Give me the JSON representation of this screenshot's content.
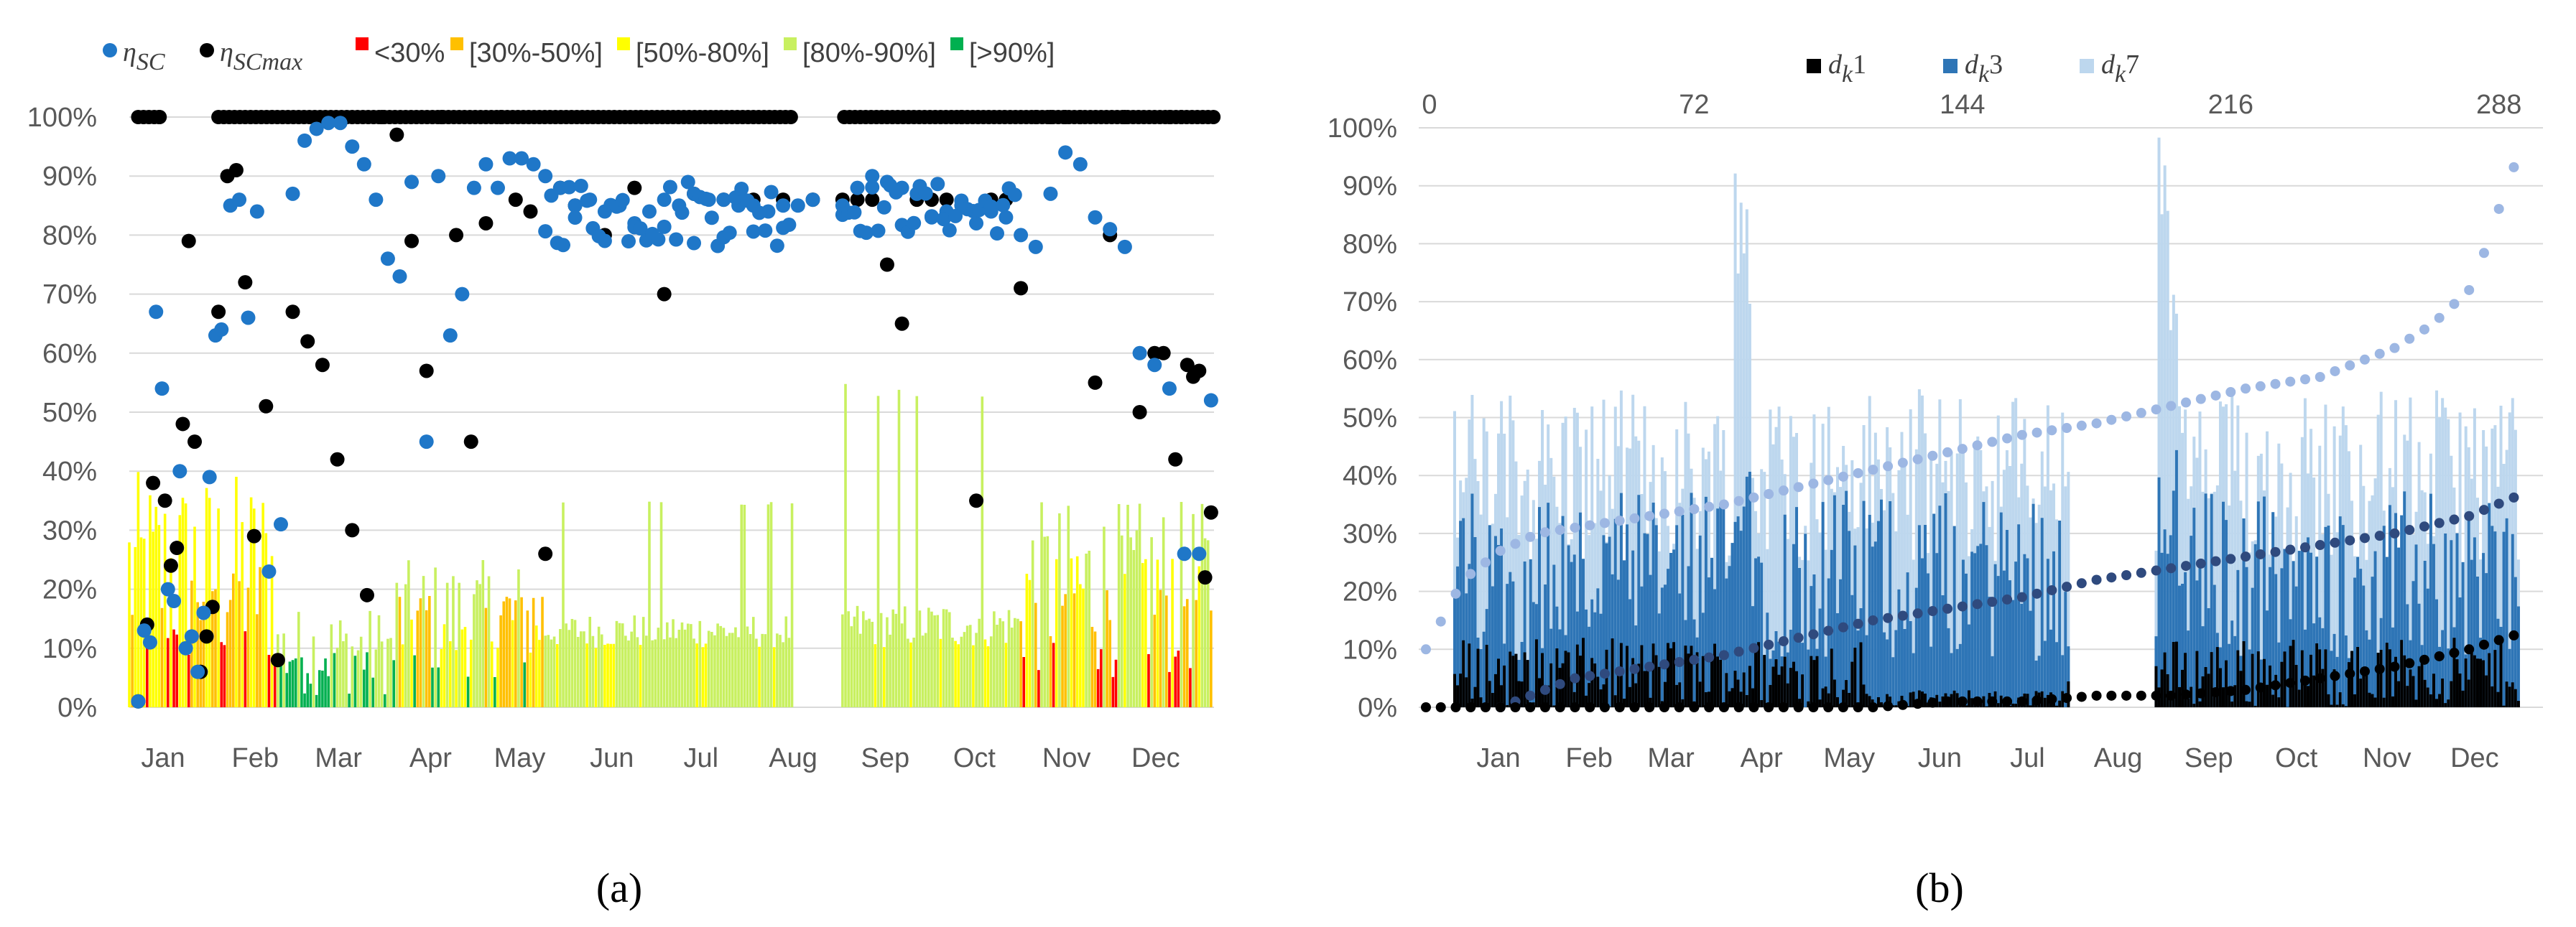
{
  "panel_a_label": "(a)",
  "panel_b_label": "(b)",
  "colors": {
    "eta_sc": "#1f77c8",
    "eta_scmax": "#000000",
    "lt30": "#ff0000",
    "b30_50": "#ffc000",
    "b50_80": "#ffff00",
    "b80_90": "#c8f060",
    "gt90": "#00b050",
    "dk1": "#000000",
    "dk3": "#2e75b6",
    "dk7": "#bdd7ee",
    "gridline": "#d9d9d9",
    "axis_text": "#595959"
  },
  "chart_data": [
    {
      "type": "scatter",
      "panel": "a",
      "ylim": [
        0,
        100
      ],
      "yticks": [
        "0%",
        "10%",
        "20%",
        "30%",
        "40%",
        "50%",
        "60%",
        "70%",
        "80%",
        "90%",
        "100%"
      ],
      "xticks": [
        "Jan",
        "Feb",
        "Mar",
        "Apr",
        "May",
        "Jun",
        "Jul",
        "Aug",
        "Sep",
        "Oct",
        "Nov",
        "Dec"
      ],
      "legend": [
        {
          "symbol": "dot",
          "main": "η",
          "sub": "SC",
          "color": "#1f77c8"
        },
        {
          "symbol": "dot",
          "main": "η",
          "sub": "SCmax",
          "color": "#000000"
        },
        {
          "symbol": "square",
          "text": "<30%",
          "color": "#ff0000"
        },
        {
          "symbol": "square",
          "text": "[30%-50%]",
          "color": "#ffc000"
        },
        {
          "symbol": "square",
          "text": "[50%-80%]",
          "color": "#ffff00"
        },
        {
          "symbol": "square",
          "text": "[80%-90%]",
          "color": "#c8f060"
        },
        {
          "symbol": "square",
          "text": "[>90%]",
          "color": "#00b050"
        }
      ],
      "legend_position": "top",
      "grid": true,
      "series": [
        {
          "key": "eta_sc_max",
          "x_day": [
            3,
            6,
            8,
            10,
            12,
            14,
            16,
            18,
            20,
            22,
            24,
            26,
            28,
            30,
            33,
            36,
            39,
            42,
            46,
            50,
            55,
            60,
            65,
            70,
            75,
            80,
            85,
            90,
            95,
            100,
            105,
            110,
            115,
            120,
            125,
            130,
            135,
            140,
            145,
            150,
            160,
            170,
            180,
            190,
            200,
            210,
            220,
            230,
            240,
            245,
            250,
            255,
            260,
            265,
            270,
            275,
            280,
            285,
            290,
            295,
            300,
            305,
            310,
            315,
            320,
            325,
            330,
            335,
            340,
            345,
            348,
            350,
            352,
            354,
            356,
            358,
            360,
            362,
            364
          ],
          "y": [
            1,
            14,
            38,
            100,
            35,
            24,
            27,
            48,
            79,
            45,
            6,
            12,
            17,
            67,
            90,
            91,
            72,
            29,
            51,
            8,
            67,
            62,
            58,
            42,
            30,
            19,
            100,
            97,
            79,
            57,
            100,
            80,
            45,
            82,
            100,
            86,
            84,
            26,
            88,
            85,
            80,
            88,
            70,
            87,
            86,
            86,
            86,
            86,
            86,
            86,
            86,
            75,
            65,
            86,
            86,
            86,
            100,
            35,
            86,
            86,
            71,
            100,
            100,
            100,
            100,
            55,
            80,
            100,
            50,
            60,
            60,
            100,
            42,
            100,
            58,
            56,
            57,
            22,
            33
          ]
        },
        {
          "key": "eta_sc",
          "x_day": [
            3,
            5,
            7,
            9,
            11,
            13,
            15,
            17,
            19,
            21,
            23,
            25,
            27,
            29,
            31,
            34,
            37,
            40,
            43,
            47,
            51,
            55,
            59,
            63,
            67,
            71,
            75,
            79,
            83,
            87,
            91,
            95,
            100,
            104,
            108,
            112,
            116,
            120,
            124,
            128,
            132,
            136,
            140,
            145,
            150,
            155,
            160,
            165,
            170,
            175,
            180,
            185,
            190,
            195,
            200,
            205,
            210,
            215,
            220,
            225,
            230,
            240,
            245,
            250,
            255,
            260,
            265,
            270,
            275,
            280,
            285,
            290,
            295,
            300,
            305,
            310,
            315,
            320,
            325,
            330,
            335,
            340,
            345,
            350,
            355,
            360,
            364
          ],
          "y": [
            1,
            13,
            11,
            67,
            54,
            20,
            18,
            40,
            10,
            12,
            6,
            16,
            39,
            63,
            64,
            85,
            86,
            66,
            84,
            23,
            31,
            87,
            96,
            98,
            99,
            99,
            95,
            92,
            86,
            76,
            73,
            89,
            45,
            90,
            63,
            70,
            88,
            92,
            88,
            93,
            93,
            92,
            90,
            88,
            85,
            86,
            84,
            85,
            82,
            84,
            86,
            85,
            87,
            86,
            86,
            85,
            85,
            84,
            85,
            85,
            86,
            85,
            88,
            90,
            89,
            88,
            87,
            83,
            84,
            85,
            82,
            84,
            83,
            80,
            78,
            87,
            94,
            92,
            83,
            81,
            78,
            60,
            58,
            54,
            26,
            26,
            52
          ]
        }
      ],
      "bars_note": "daily coloured bars by band"
    },
    {
      "type": "bar",
      "panel": "b",
      "ylim": [
        0,
        100
      ],
      "yticks": [
        "0%",
        "10%",
        "20%",
        "30%",
        "40%",
        "50%",
        "60%",
        "70%",
        "80%",
        "90%",
        "100%"
      ],
      "xticks_bottom": [
        "Jan",
        "Feb",
        "Mar",
        "Apr",
        "May",
        "Jun",
        "Jul",
        "Aug",
        "Sep",
        "Oct",
        "Nov",
        "Dec"
      ],
      "xticks_top": [
        "0",
        "72",
        "144",
        "216",
        "288"
      ],
      "legend": [
        {
          "main": "d",
          "sub": "k",
          "num": "1",
          "color": "#000000"
        },
        {
          "main": "d",
          "sub": "k",
          "num": "3",
          "color": "#2e75b6"
        },
        {
          "main": "d",
          "sub": "k",
          "num": "7",
          "color": "#bdd7ee"
        }
      ],
      "legend_position": "top",
      "grid": true,
      "sorted_curves": [
        {
          "key": "dk7",
          "x_rank": [
            0,
            10,
            20,
            30,
            40,
            60,
            80,
            100,
            120,
            140,
            160,
            180,
            200,
            220,
            240,
            260,
            270,
            280,
            285,
            290,
            295
          ],
          "y": [
            10,
            22,
            27,
            30,
            31,
            33,
            35,
            38,
            41,
            44,
            47,
            49,
            52,
            55,
            57,
            62,
            66,
            72,
            80,
            90,
            98
          ]
        },
        {
          "key": "dk3",
          "x_rank": [
            20,
            40,
            60,
            80,
            100,
            120,
            140,
            160,
            180,
            200,
            220,
            240,
            260,
            280,
            295
          ],
          "y": [
            0,
            5,
            7,
            9,
            12,
            15,
            17,
            19,
            22,
            24,
            26,
            28,
            30,
            33,
            37
          ]
        },
        {
          "key": "dk1",
          "x_rank": [
            0,
            10,
            20,
            40,
            60,
            80,
            100,
            120,
            140,
            160,
            180,
            200,
            220,
            240,
            260,
            280,
            295
          ],
          "y": [
            0,
            0,
            0,
            0,
            0,
            0,
            0,
            0,
            1,
            1,
            2,
            2,
            3,
            5,
            7,
            10,
            13
          ]
        }
      ]
    }
  ]
}
